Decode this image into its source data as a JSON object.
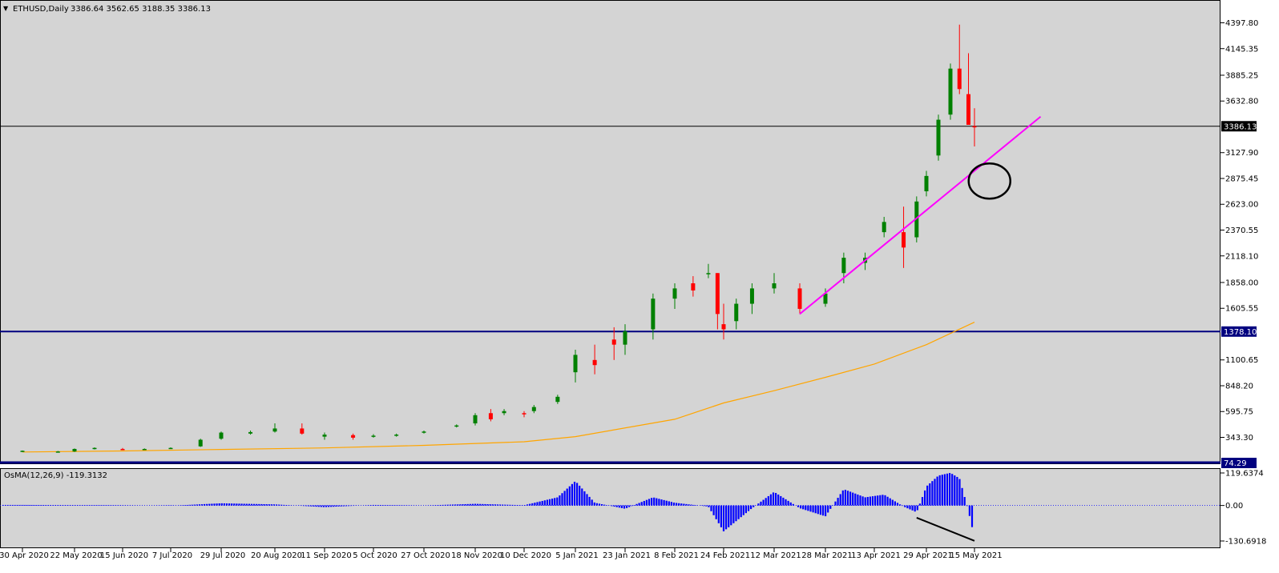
{
  "header": {
    "symbol": "ETHUSD,Daily",
    "ohlc": "3386.64 3562.65 3188.35 3386.13"
  },
  "osma": {
    "label": "OsMA(12,26,9) -119.3132",
    "ticks": [
      "119.6374",
      "0.00",
      "-130.6918"
    ],
    "tick_values": [
      119.6374,
      0,
      -130.6918
    ]
  },
  "colors": {
    "background": "#d4d4d4",
    "bull": "#008000",
    "bear": "#ff0000",
    "ma": "#ffa500",
    "trendline": "#ff00ff",
    "support": "#00007f",
    "histogram": "#0000ff"
  },
  "chart_data": {
    "type": "candlestick",
    "y_ticks": [
      "4397.80",
      "4145.35",
      "3885.25",
      "3632.80",
      "3127.90",
      "2875.45",
      "2623.00",
      "2370.55",
      "2118.10",
      "1858.00",
      "1605.55",
      "1100.65",
      "848.20",
      "595.75",
      "343.30"
    ],
    "y_tick_values": [
      4397.8,
      4145.35,
      3885.25,
      3632.8,
      3127.9,
      2875.45,
      2623.0,
      2370.55,
      2118.1,
      1858.0,
      1605.55,
      1100.65,
      848.2,
      595.75,
      343.3
    ],
    "x_ticks": [
      "30 Apr 2020",
      "22 May 2020",
      "15 Jun 2020",
      "7 Jul 2020",
      "29 Jul 2020",
      "20 Aug 2020",
      "11 Sep 2020",
      "5 Oct 2020",
      "27 Oct 2020",
      "18 Nov 2020",
      "10 Dec 2020",
      "5 Jan 2021",
      "23 Jan 2021",
      "8 Feb 2021",
      "24 Feb 2021",
      "12 Mar 2021",
      "28 Mar 2021",
      "13 Apr 2021",
      "29 Apr 2021",
      "15 May 2021"
    ],
    "price_line": {
      "label": "3386.13",
      "value": 3386.13
    },
    "support_line": {
      "label": "1378.10",
      "value": 1378.1
    },
    "bottom_line": {
      "label": "74.29",
      "value": 74.29
    },
    "series": [
      {
        "type": "ohlc",
        "points": [
          [
            "30 Apr 2020",
            205,
            215,
            200,
            212
          ],
          [
            "15 May 2020",
            200,
            210,
            195,
            205
          ],
          [
            "22 May 2020",
            205,
            235,
            200,
            230
          ],
          [
            "1 Jun 2020",
            235,
            245,
            225,
            240
          ],
          [
            "15 Jun 2020",
            230,
            240,
            220,
            228
          ],
          [
            "25 Jun 2020",
            228,
            235,
            222,
            230
          ],
          [
            "7 Jul 2020",
            240,
            245,
            235,
            240
          ],
          [
            "20 Jul 2020",
            255,
            330,
            250,
            320
          ],
          [
            "29 Jul 2020",
            330,
            400,
            320,
            390
          ],
          [
            "10 Aug 2020",
            380,
            410,
            370,
            395
          ],
          [
            "20 Aug 2020",
            400,
            480,
            390,
            430
          ],
          [
            "1 Sep 2020",
            430,
            480,
            370,
            380
          ],
          [
            "11 Sep 2020",
            350,
            390,
            320,
            370
          ],
          [
            "25 Sep 2020",
            365,
            380,
            320,
            340
          ],
          [
            "5 Oct 2020",
            350,
            375,
            340,
            360
          ],
          [
            "15 Oct 2020",
            360,
            380,
            350,
            370
          ],
          [
            "27 Oct 2020",
            390,
            410,
            380,
            400
          ],
          [
            "10 Nov 2020",
            450,
            470,
            440,
            460
          ],
          [
            "18 Nov 2020",
            480,
            580,
            460,
            560
          ],
          [
            "25 Nov 2020",
            580,
            620,
            500,
            520
          ],
          [
            "1 Dec 2020",
            580,
            620,
            560,
            600
          ],
          [
            "10 Dec 2020",
            580,
            600,
            540,
            570
          ],
          [
            "15 Dec 2020",
            600,
            660,
            580,
            640
          ],
          [
            "27 Dec 2020",
            690,
            760,
            670,
            740
          ],
          [
            "5 Jan 2021",
            980,
            1200,
            880,
            1150
          ],
          [
            "12 Jan 2021",
            1100,
            1250,
            960,
            1050
          ],
          [
            "19 Jan 2021",
            1300,
            1420,
            1100,
            1250
          ],
          [
            "23 Jan 2021",
            1250,
            1450,
            1150,
            1380
          ],
          [
            "1 Feb 2021",
            1400,
            1750,
            1300,
            1700
          ],
          [
            "8 Feb 2021",
            1700,
            1850,
            1600,
            1800
          ],
          [
            "14 Feb 2021",
            1850,
            1920,
            1720,
            1780
          ],
          [
            "19 Feb 2021",
            1950,
            2040,
            1900,
            1950
          ],
          [
            "22 Feb 2021",
            1950,
            1950,
            1400,
            1550
          ],
          [
            "24 Feb 2021",
            1450,
            1650,
            1300,
            1400
          ],
          [
            "28 Feb 2021",
            1480,
            1700,
            1400,
            1650
          ],
          [
            "5 Mar 2021",
            1650,
            1850,
            1550,
            1800
          ],
          [
            "12 Mar 2021",
            1800,
            1950,
            1750,
            1850
          ],
          [
            "20 Mar 2021",
            1800,
            1850,
            1550,
            1600
          ],
          [
            "28 Mar 2021",
            1650,
            1800,
            1620,
            1750
          ],
          [
            "3 Apr 2021",
            1950,
            2150,
            1850,
            2100
          ],
          [
            "10 Apr 2021",
            2050,
            2150,
            1980,
            2100
          ],
          [
            "16 Apr 2021",
            2350,
            2500,
            2300,
            2450
          ],
          [
            "22 Apr 2021",
            2350,
            2600,
            2000,
            2200
          ],
          [
            "26 Apr 2021",
            2300,
            2700,
            2250,
            2650
          ],
          [
            "29 Apr 2021",
            2750,
            2950,
            2700,
            2900
          ],
          [
            "3 May 2021",
            3100,
            3500,
            3050,
            3450
          ],
          [
            "7 May 2021",
            3500,
            4000,
            3450,
            3950
          ],
          [
            "10 May 2021",
            3950,
            4380,
            3700,
            3750
          ],
          [
            "13 May 2021",
            3700,
            4100,
            3600,
            3400
          ],
          [
            "15 May 2021",
            3386.64,
            3562.65,
            3188.35,
            3386.13
          ]
        ]
      },
      {
        "type": "moving-average",
        "points": [
          [
            "30 Apr 2020",
            200
          ],
          [
            "15 Jun 2020",
            210
          ],
          [
            "29 Jul 2020",
            225
          ],
          [
            "11 Sep 2020",
            240
          ],
          [
            "27 Oct 2020",
            265
          ],
          [
            "10 Dec 2020",
            300
          ],
          [
            "5 Jan 2021",
            350
          ],
          [
            "8 Feb 2021",
            520
          ],
          [
            "24 Feb 2021",
            680
          ],
          [
            "12 Mar 2021",
            800
          ],
          [
            "28 Mar 2021",
            930
          ],
          [
            "13 Apr 2021",
            1060
          ],
          [
            "29 Apr 2021",
            1250
          ],
          [
            "15 May 2021",
            1470
          ]
        ]
      },
      {
        "type": "osma-histogram",
        "points": [
          [
            "30 Apr 2020",
            2
          ],
          [
            "15 Jun 2020",
            1
          ],
          [
            "7 Jul 2020",
            -1
          ],
          [
            "29 Jul 2020",
            8
          ],
          [
            "20 Aug 2020",
            4
          ],
          [
            "11 Sep 2020",
            -6
          ],
          [
            "5 Oct 2020",
            2
          ],
          [
            "27 Oct 2020",
            0
          ],
          [
            "18 Nov 2020",
            6
          ],
          [
            "10 Dec 2020",
            1
          ],
          [
            "27 Dec 2020",
            30
          ],
          [
            "5 Jan 2021",
            90
          ],
          [
            "12 Jan 2021",
            10
          ],
          [
            "23 Jan 2021",
            -12
          ],
          [
            "1 Feb 2021",
            30
          ],
          [
            "8 Feb 2021",
            10
          ],
          [
            "19 Feb 2021",
            -4
          ],
          [
            "24 Feb 2021",
            -95
          ],
          [
            "5 Mar 2021",
            -10
          ],
          [
            "12 Mar 2021",
            50
          ],
          [
            "20 Mar 2021",
            -10
          ],
          [
            "28 Mar 2021",
            -40
          ],
          [
            "3 Apr 2021",
            60
          ],
          [
            "10 Apr 2021",
            30
          ],
          [
            "16 Apr 2021",
            40
          ],
          [
            "22 Apr 2021",
            -4
          ],
          [
            "26 Apr 2021",
            -25
          ],
          [
            "29 Apr 2021",
            70
          ],
          [
            "3 May 2021",
            110
          ],
          [
            "7 May 2021",
            120
          ],
          [
            "10 May 2021",
            100
          ],
          [
            "13 May 2021",
            -20
          ],
          [
            "15 May 2021",
            -119.3132
          ]
        ]
      }
    ],
    "annotations": [
      {
        "type": "trendline",
        "from": [
          "20 Mar 2021",
          1550
        ],
        "to": [
          "6 Jun 2021",
          3480
        ]
      },
      {
        "type": "ellipse",
        "center": [
          "20 May 2021",
          2850
        ]
      },
      {
        "type": "divergence-line",
        "from": [
          "26 Apr 2021",
          -45
        ],
        "to": [
          "15 May 2021",
          -130
        ]
      }
    ]
  }
}
